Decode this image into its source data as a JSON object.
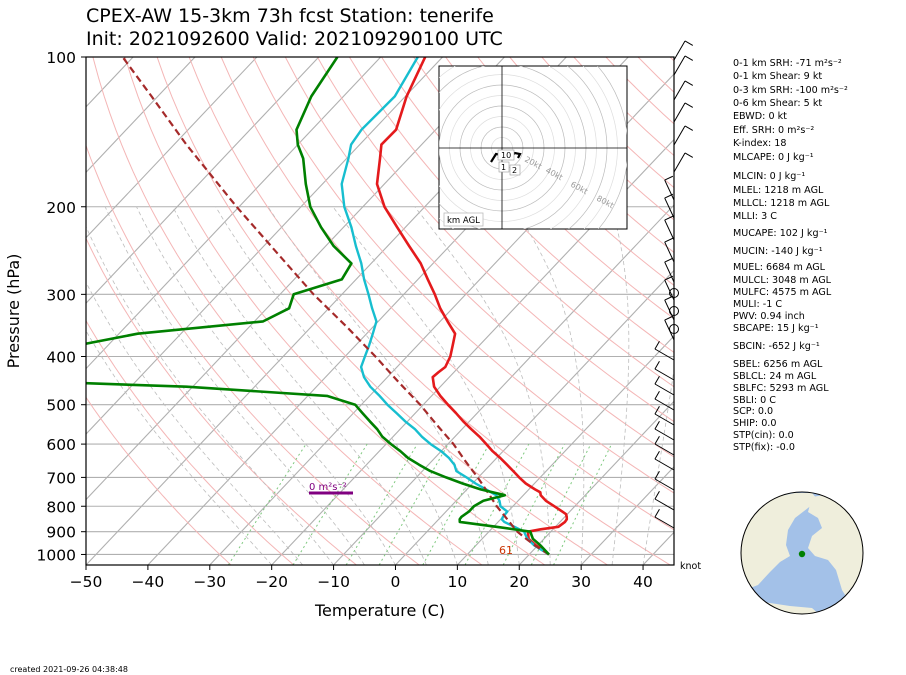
{
  "header": {
    "title_line1": "CPEX-AW 15-3km  73h fcst  Station: tenerife",
    "title_line2": "Init: 2021092600  Valid: 202109290100 UTC"
  },
  "chart_data": {
    "type": "line",
    "xlabel": "Temperature (C)",
    "ylabel": "Pressure (hPa)",
    "x_ticks": [
      "−50",
      "−40",
      "−30",
      "−20",
      "−10",
      "0",
      "10",
      "20",
      "30",
      "40"
    ],
    "x_tick_values": [
      -50,
      -40,
      -30,
      -20,
      -10,
      0,
      10,
      20,
      30,
      40
    ],
    "y_ticks": [
      "100",
      "200",
      "300",
      "400",
      "500",
      "600",
      "700",
      "800",
      "900",
      "1000"
    ],
    "y_tick_values": [
      100,
      200,
      300,
      400,
      500,
      600,
      700,
      800,
      900,
      1000
    ],
    "xlim": [
      -50,
      45
    ],
    "ylim": [
      1050,
      100
    ],
    "yscale": "log",
    "skew_deg_per_decade": 76,
    "series": [
      {
        "key": "temperature",
        "color": "#e41a1c",
        "p": [
          1000,
          960,
          930,
          900,
          890,
          880,
          860,
          850,
          840,
          830,
          820,
          800,
          780,
          760,
          750,
          740,
          720,
          700,
          680,
          660,
          640,
          620,
          600,
          580,
          560,
          540,
          520,
          500,
          480,
          460,
          440,
          430,
          420,
          400,
          380,
          360,
          340,
          320,
          300,
          280,
          260,
          240,
          220,
          200,
          180,
          160,
          150,
          140,
          120,
          100
        ],
        "t": [
          23.2,
          19.8,
          17.5,
          16.3,
          18.0,
          20.5,
          20.8,
          20.7,
          20.3,
          19.8,
          18.8,
          16.7,
          14.5,
          12.8,
          12.3,
          11.0,
          8.6,
          6.6,
          4.7,
          2.7,
          0.6,
          -1.7,
          -3.8,
          -6.0,
          -8.5,
          -11.0,
          -13.4,
          -16.0,
          -18.6,
          -21.0,
          -22.7,
          -22.5,
          -22.2,
          -23.0,
          -24.3,
          -25.7,
          -28.8,
          -32.0,
          -35.0,
          -38.4,
          -42.0,
          -46.5,
          -51.3,
          -56.5,
          -61.2,
          -64.6,
          -66.5,
          -66.4,
          -69.8,
          -72.8
        ]
      },
      {
        "key": "dewpoint",
        "color": "#17becf",
        "p": [
          1000,
          960,
          930,
          900,
          880,
          860,
          850,
          840,
          820,
          800,
          780,
          760,
          740,
          720,
          700,
          680,
          660,
          640,
          620,
          600,
          580,
          560,
          540,
          520,
          500,
          480,
          460,
          440,
          420,
          400,
          380,
          360,
          340,
          320,
          300,
          280,
          260,
          240,
          220,
          200,
          180,
          160,
          150,
          140,
          120,
          100
        ],
        "t": [
          23.2,
          19.5,
          17.3,
          15.7,
          13.4,
          11.0,
          10.2,
          10.0,
          9.9,
          8.0,
          7.0,
          5.6,
          3.1,
          0.5,
          -1.9,
          -4.5,
          -5.8,
          -7.7,
          -10.0,
          -12.8,
          -15.3,
          -17.6,
          -20.4,
          -23.0,
          -25.8,
          -28.4,
          -31.3,
          -33.8,
          -35.8,
          -36.8,
          -37.8,
          -39.0,
          -40.3,
          -43.0,
          -45.7,
          -48.7,
          -51.6,
          -55.1,
          -58.7,
          -63.0,
          -66.9,
          -69.7,
          -71.4,
          -72.0,
          -71.7,
          -74.0
        ]
      },
      {
        "key": "parcel",
        "color": "#a52a2a",
        "p": [
          1000,
          960,
          930,
          900,
          850,
          800,
          750,
          700,
          650,
          600,
          550,
          500,
          450,
          400,
          350,
          300,
          250,
          200,
          150,
          120,
          100
        ],
        "t": [
          23.2,
          19.6,
          17.1,
          14.6,
          11.1,
          7.4,
          3.8,
          -0.1,
          -4.5,
          -9.1,
          -14.6,
          -20.5,
          -27.5,
          -35.1,
          -44.0,
          -54.6,
          -66.2,
          -80.4,
          -98.0,
          -111.0,
          -121.7
        ]
      },
      {
        "key": "wet-bulb",
        "color": "#008000",
        "p": [
          1000,
          960,
          930,
          900,
          880,
          860,
          850,
          840,
          820,
          800,
          780,
          760,
          740,
          720,
          700,
          680,
          660,
          640,
          620,
          600,
          580,
          560,
          540,
          520,
          500,
          480,
          460,
          440,
          420,
          400,
          380,
          360,
          340,
          320,
          300,
          280,
          260,
          240,
          220,
          200,
          180,
          160,
          150,
          140,
          120,
          100
        ],
        "t": [
          23.2,
          20.5,
          18.2,
          16.7,
          10.5,
          3.8,
          3.4,
          3.3,
          3.7,
          3.7,
          4.4,
          7.0,
          2.2,
          -1.6,
          -5.2,
          -8.7,
          -11.5,
          -14.3,
          -16.6,
          -19.2,
          -21.7,
          -23.7,
          -26.1,
          -28.5,
          -31.0,
          -36.9,
          -61.0,
          -107.5,
          -115.0,
          -105.0,
          -85.0,
          -77.0,
          -58.6,
          -56.4,
          -57.8,
          -52.3,
          -53.2,
          -58.7,
          -63.6,
          -68.5,
          -72.7,
          -77.0,
          -80.0,
          -82.5,
          -85.2,
          -87.0
        ]
      }
    ],
    "annotations": {
      "srh_label": "0 m²s⁻²",
      "hodo_rings": [
        "20kt",
        "40kt",
        "60kt",
        "80kt"
      ],
      "hodo_labels": [
        "10",
        "2",
        "1"
      ],
      "hodo_legend": "km AGL",
      "surface_label": "61",
      "wind_unit": "knot"
    }
  },
  "indices": [
    "0-1 km SRH: -71 m²s⁻²",
    "0-1 km Shear: 9 kt",
    "0-3 km SRH: -100 m²s⁻²",
    "0-6 km Shear: 5 kt",
    "EBWD: 0 kt",
    "Eff. SRH: 0 m²s⁻²",
    "K-index: 18",
    "MLCAPE: 0 J kg⁻¹",
    "MLCIN: 0 J kg⁻¹",
    "MLEL: 1218 m AGL",
    "MLLCL: 1218 m AGL",
    "MLLI: 3 C",
    "MUCAPE: 102 J kg⁻¹",
    "MUCIN: -140 J kg⁻¹",
    "MUEL: 6684 m AGL",
    "MULCL: 3048 m AGL",
    "MULFC: 4575 m AGL",
    "MULI: -1 C",
    "PWV: 0.94 inch",
    "SBCAPE: 15 J kg⁻¹",
    "SBCIN: -652 J kg⁻¹",
    "SBEL: 6256 m AGL",
    "SBLCL: 24 m AGL",
    "SBLFC: 5293 m AGL",
    "SBLI: 0 C",
    "SCP: 0.0",
    "SHIP: 0.0",
    "STP(cin): 0.0",
    "STP(fix): -0.0"
  ],
  "footer": {
    "created": "created 2021-09-26 04:38:48"
  },
  "colors": {
    "isotherm": "#b0b0b0",
    "dry_adiabat": "#f4b6b6",
    "moist_adiabat": "#bdbdbd",
    "mixing_ratio": "#7fc97f",
    "srh_bar": "#800080",
    "globe_ocean": "#a3c1e8",
    "globe_land": "#efeedc",
    "station_dot": "#008000"
  }
}
